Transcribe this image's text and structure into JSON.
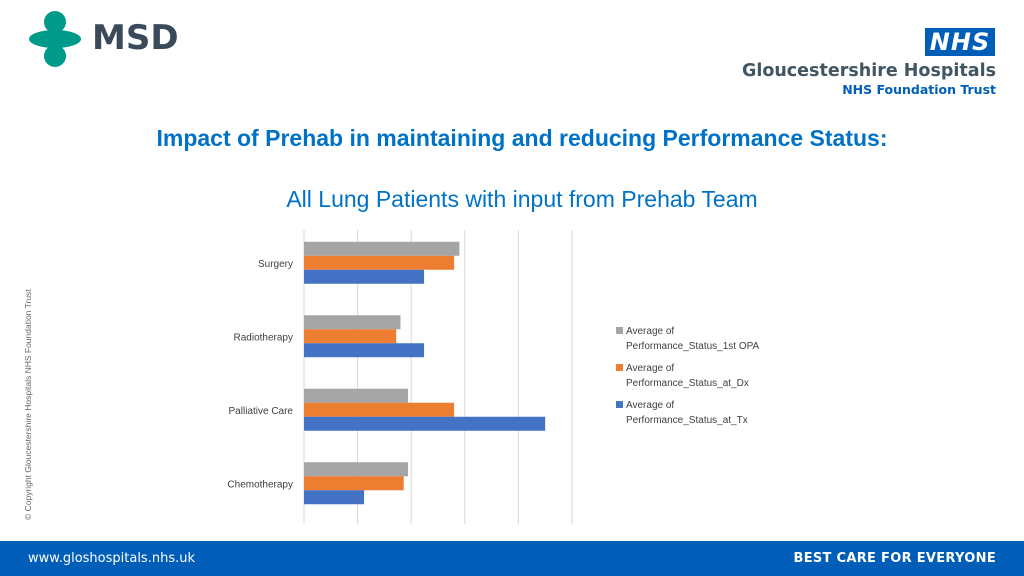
{
  "header": {
    "left_logo": {
      "text": "MSD",
      "color": "#009a8a"
    },
    "right_logo": {
      "badge": "NHS",
      "org_name": "Gloucestershire Hospitals",
      "org_subtitle": "NHS Foundation Trust",
      "color": "#005eb8"
    }
  },
  "copyright": "© Copyright Gloucestershire Hospitals NHS Foundation Trust",
  "footer": {
    "url": "www.gloshospitals.nhs.uk",
    "motto": "BEST CARE FOR EVERYONE",
    "color": "#005eb8"
  },
  "chart_data": {
    "type": "bar",
    "orientation": "horizontal",
    "title": "Impact of Prehab in maintaining and reducing Performance Status:",
    "subtitle": "All Lung Patients with input from Prehab Team",
    "categories": [
      "Surgery",
      "Radiotherapy",
      "Palliative Care",
      "Chemotherapy"
    ],
    "series": [
      {
        "name": "Average of Performance_Status_1st OPA",
        "color": "#a5a5a5",
        "values": [
          1.45,
          0.9,
          0.97,
          0.97
        ]
      },
      {
        "name": "Average of Performance_Status_at_Dx",
        "color": "#ed7d31",
        "values": [
          1.4,
          0.86,
          1.4,
          0.93
        ]
      },
      {
        "name": "Average of Performance_Status_at_Tx",
        "color": "#4472c4",
        "values": [
          1.12,
          1.12,
          2.25,
          0.56
        ]
      }
    ],
    "xlim": [
      0,
      2.5
    ],
    "x_gridlines": [
      0,
      0.5,
      1,
      1.5,
      2,
      2.5
    ],
    "grid": true,
    "legend": "right",
    "xlabel": "",
    "ylabel": ""
  }
}
